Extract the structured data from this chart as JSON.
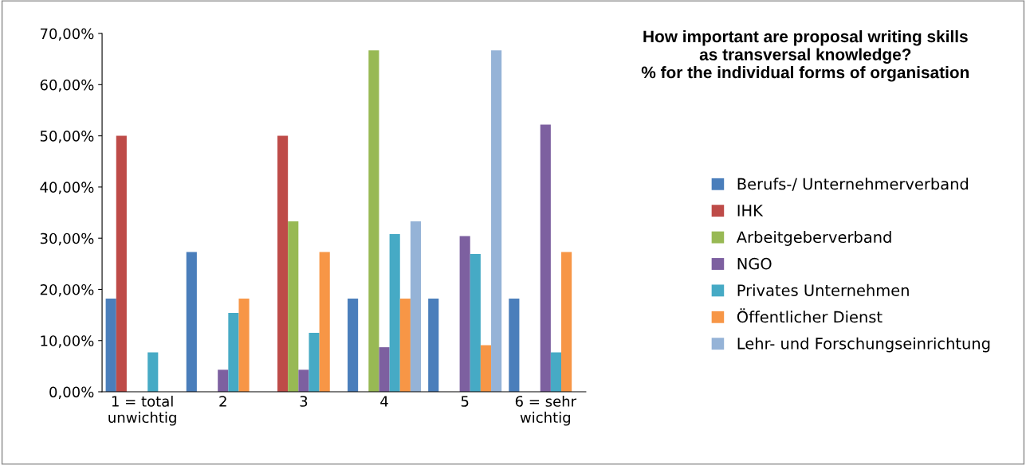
{
  "chart_data": {
    "type": "bar",
    "title": "How important are proposal writing skills\nas transversal knowledge?\n% for the individual forms of organisation",
    "categories": [
      "1 = total\nunwichtig",
      "2",
      "3",
      "4",
      "5",
      "6 = sehr\nwichtig"
    ],
    "series": [
      {
        "name": "Berufs-/ Unternehmerverband",
        "color": "#4a7ebb",
        "values": [
          18.2,
          27.3,
          0,
          18.2,
          18.2,
          18.2
        ]
      },
      {
        "name": "IHK",
        "color": "#be4b48",
        "values": [
          50,
          0,
          50,
          0,
          0,
          0
        ]
      },
      {
        "name": "Arbeitgeberverband",
        "color": "#98b954",
        "values": [
          0,
          0,
          33.3,
          66.7,
          0,
          0
        ]
      },
      {
        "name": "NGO",
        "color": "#7d60a0",
        "values": [
          0,
          4.3,
          4.3,
          8.7,
          30.4,
          52.2
        ]
      },
      {
        "name": "Privates Unternehmen",
        "color": "#46aac5",
        "values": [
          7.7,
          15.4,
          11.5,
          30.8,
          26.9,
          7.7
        ]
      },
      {
        "name": "Öffentlicher Dienst",
        "color": "#f79646",
        "values": [
          0,
          18.2,
          27.3,
          18.2,
          9.1,
          27.3
        ]
      },
      {
        "name": "Lehr- und Forschungseinrichtung",
        "color": "#95b3d7",
        "values": [
          0,
          0,
          0,
          33.3,
          66.7,
          0
        ]
      }
    ],
    "ylim": [
      0,
      70
    ],
    "yticks": [
      {
        "value": 0,
        "label": "0,00%"
      },
      {
        "value": 10,
        "label": "10,00%"
      },
      {
        "value": 20,
        "label": "20,00%"
      },
      {
        "value": 30,
        "label": "30,00%"
      },
      {
        "value": 40,
        "label": "40,00%"
      },
      {
        "value": 50,
        "label": "50,00%"
      },
      {
        "value": 60,
        "label": "60,00%"
      },
      {
        "value": 70,
        "label": "70,00%"
      }
    ],
    "grid": false,
    "legend": "right"
  }
}
